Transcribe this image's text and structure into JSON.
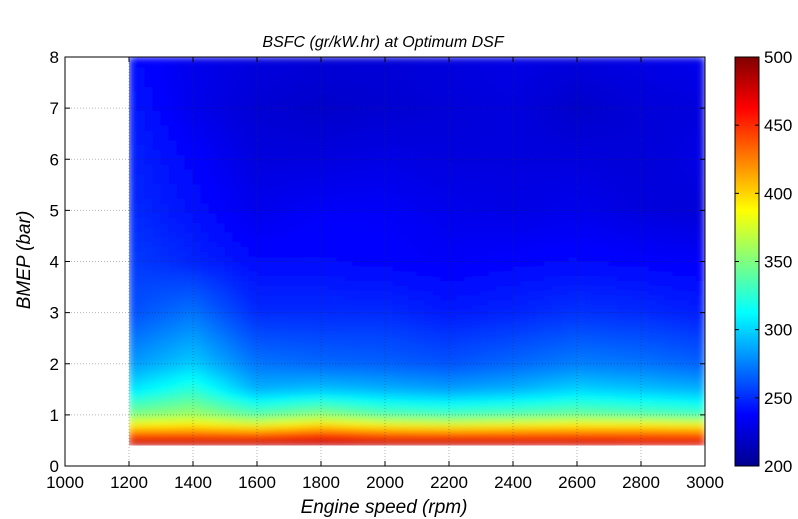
{
  "chart_data": {
    "type": "heatmap",
    "title": "BSFC (gr/kW.hr) at Optimum DSF",
    "xlabel": "Engine speed (rpm)",
    "ylabel": "BMEP (bar)",
    "xlim": [
      1000,
      3000
    ],
    "ylim": [
      0,
      8
    ],
    "x_ticks": [
      "1000",
      "1200",
      "1400",
      "1600",
      "1800",
      "2000",
      "2200",
      "2400",
      "2600",
      "2800",
      "3000"
    ],
    "y_ticks": [
      "0",
      "1",
      "2",
      "3",
      "4",
      "5",
      "6",
      "7",
      "8"
    ],
    "grid": true,
    "data_x_range": [
      1200,
      3000
    ],
    "data_y_range": [
      0.4,
      8
    ],
    "colorbar": {
      "range": [
        200,
        500
      ],
      "ticks": [
        "200",
        "250",
        "300",
        "350",
        "400",
        "450",
        "500"
      ],
      "colormap": "jet",
      "placement": "right"
    },
    "x": [
      1200,
      1400,
      1600,
      1800,
      2000,
      2200,
      2400,
      2600,
      2800,
      3000
    ],
    "y": [
      0.4,
      0.6,
      0.8,
      1.0,
      1.5,
      2.0,
      3.0,
      4.0,
      5.0,
      6.0,
      7.0,
      8.0
    ],
    "z": [
      [
        500,
        500,
        500,
        500,
        500,
        500,
        495,
        495,
        490,
        490
      ],
      [
        440,
        440,
        440,
        450,
        440,
        440,
        440,
        440,
        440,
        440
      ],
      [
        390,
        395,
        385,
        400,
        390,
        385,
        390,
        395,
        395,
        390
      ],
      [
        350,
        360,
        340,
        355,
        340,
        335,
        340,
        345,
        340,
        335
      ],
      [
        305,
        325,
        290,
        295,
        290,
        285,
        290,
        300,
        295,
        290
      ],
      [
        282,
        298,
        272,
        268,
        266,
        262,
        268,
        275,
        272,
        266
      ],
      [
        260,
        272,
        250,
        250,
        250,
        245,
        248,
        252,
        250,
        246
      ],
      [
        255,
        248,
        240,
        240,
        238,
        236,
        238,
        240,
        238,
        236
      ],
      [
        250,
        242,
        232,
        236,
        236,
        232,
        230,
        232,
        228,
        226
      ],
      [
        248,
        238,
        228,
        228,
        230,
        228,
        228,
        228,
        226,
        230
      ],
      [
        245,
        232,
        225,
        222,
        224,
        226,
        228,
        222,
        226,
        228
      ],
      [
        240,
        232,
        228,
        226,
        226,
        228,
        230,
        228,
        230,
        232
      ]
    ]
  }
}
